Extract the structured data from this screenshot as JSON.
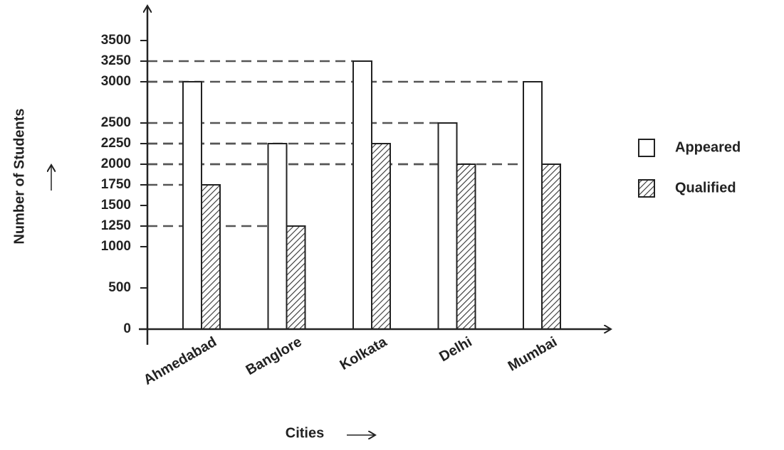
{
  "chart_data": {
    "type": "bar",
    "x_label": "Cities",
    "y_label": "Number of Students",
    "categories": [
      "Ahmedabad",
      "Banglore",
      "Kolkata",
      "Delhi",
      "Mumbai"
    ],
    "series": [
      {
        "name": "Appeared",
        "color": "#ffffff",
        "values": [
          3000,
          2250,
          3250,
          2500,
          3000
        ]
      },
      {
        "name": "Qualified",
        "color": "hatched",
        "values": [
          1750,
          1250,
          2250,
          2000,
          2000
        ]
      }
    ],
    "ylim": [
      0,
      3500
    ],
    "yticks": [
      0,
      500,
      1000,
      1250,
      1500,
      1750,
      2000,
      2250,
      2500,
      3000,
      3250,
      3500
    ],
    "legend": "right"
  }
}
